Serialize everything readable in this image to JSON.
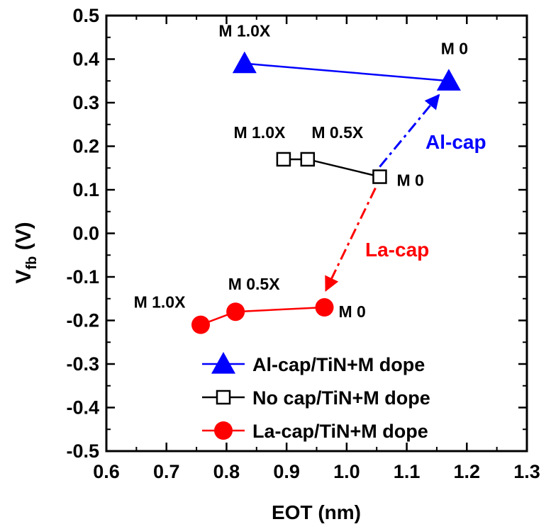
{
  "chart_data": {
    "type": "line",
    "xlabel": "EOT (nm)",
    "ylabel": "V",
    "ylabel_sub": "fb",
    "ylabel_suffix": " (V)",
    "xlim": [
      0.6,
      1.3
    ],
    "ylim": [
      -0.5,
      0.5
    ],
    "xticks": [
      0.6,
      0.7,
      0.8,
      0.9,
      1.0,
      1.1,
      1.2,
      1.3
    ],
    "yticks": [
      -0.5,
      -0.4,
      -0.3,
      -0.2,
      -0.1,
      0.0,
      0.1,
      0.2,
      0.3,
      0.4,
      0.5
    ],
    "xtick_labels": [
      "0.6",
      "0.7",
      "0.8",
      "0.9",
      "1.0",
      "1.1",
      "1.2",
      "1.3"
    ],
    "ytick_labels": [
      "-0.5",
      "-0.4",
      "-0.3",
      "-0.2",
      "-0.1",
      "0.0",
      "0.1",
      "0.2",
      "0.3",
      "0.4",
      "0.5"
    ],
    "grid": false,
    "legend_position": "bottom-right",
    "series": [
      {
        "name": "Al-cap/TiN+M dope",
        "color": "#0000ff",
        "marker": "filled-triangle",
        "x": [
          0.83,
          1.17
        ],
        "y": [
          0.39,
          0.35
        ]
      },
      {
        "name": "No cap/TiN+M dope",
        "color": "#000000",
        "marker": "open-square",
        "x": [
          0.895,
          0.935,
          1.055
        ],
        "y": [
          0.17,
          0.17,
          0.13
        ]
      },
      {
        "name": "La-cap/TiN+M dope",
        "color": "#ff0000",
        "marker": "filled-circle",
        "x": [
          0.757,
          0.815,
          0.963
        ],
        "y": [
          -0.21,
          -0.18,
          -0.17
        ]
      }
    ],
    "point_labels": [
      {
        "text": "M 1.0X",
        "x": 0.83,
        "y": 0.39,
        "color": "#000000"
      },
      {
        "text": "M 0",
        "x": 1.17,
        "y": 0.35,
        "color": "#000000"
      },
      {
        "text": "M 1.0X",
        "x": 0.895,
        "y": 0.17,
        "color": "#000000"
      },
      {
        "text": "M 0.5X",
        "x": 0.935,
        "y": 0.17,
        "color": "#000000"
      },
      {
        "text": "M 0",
        "x": 1.055,
        "y": 0.13,
        "color": "#000000"
      },
      {
        "text": "M 1.0X",
        "x": 0.757,
        "y": -0.21,
        "color": "#000000"
      },
      {
        "text": "M 0.5X",
        "x": 0.815,
        "y": -0.18,
        "color": "#000000"
      },
      {
        "text": "M 0",
        "x": 0.963,
        "y": -0.17,
        "color": "#000000"
      }
    ],
    "annotations": [
      {
        "text": "Al-cap",
        "color": "#0000ff",
        "arrow_from": [
          1.055,
          0.13
        ],
        "arrow_to": [
          1.17,
          0.35
        ]
      },
      {
        "text": "La-cap",
        "color": "#ff0000",
        "arrow_from": [
          1.055,
          0.13
        ],
        "arrow_to": [
          0.963,
          -0.17
        ]
      }
    ]
  }
}
